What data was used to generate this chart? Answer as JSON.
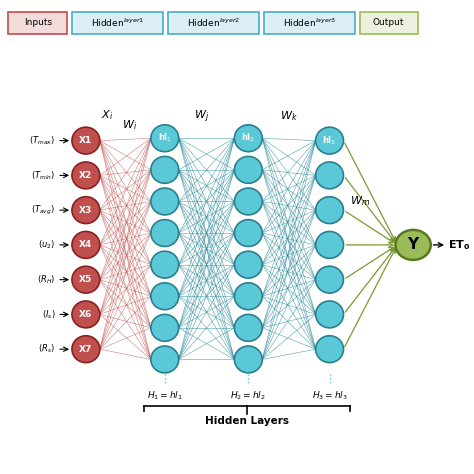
{
  "n_inputs": 7,
  "n_hidden1": 8,
  "n_hidden2": 8,
  "n_hidden3": 7,
  "input_node_labels": [
    "X1",
    "X2",
    "X3",
    "X4",
    "X5",
    "X6",
    "X7"
  ],
  "input_text_labels": [
    "$(T_{max})$",
    "$(T_{min})$",
    "$(T_{avg})$",
    "$(u_2)$",
    "$(R_H)$",
    "$(I_s)$",
    "$(R_s)$"
  ],
  "input_color": "#c0504d",
  "input_edge_color": "#8b2020",
  "hidden_color": "#5bc8d8",
  "hidden_edge_color": "#2a7f8f",
  "hidden_conn_color": "#2a8a9a",
  "input_conn_color": "#c0504d",
  "output_color": "#9bbb59",
  "output_edge_color": "#5a7a20",
  "output_conn_color": "#7a9a30",
  "header_input_fc": "#f2dcdb",
  "header_input_ec": "#c0504d",
  "header_hidden_fc": "#daeef3",
  "header_hidden_ec": "#4bacc6",
  "header_output_fc": "#ebf1de",
  "header_output_ec": "#9bbb59",
  "figsize": [
    4.74,
    4.74
  ],
  "dpi": 100
}
